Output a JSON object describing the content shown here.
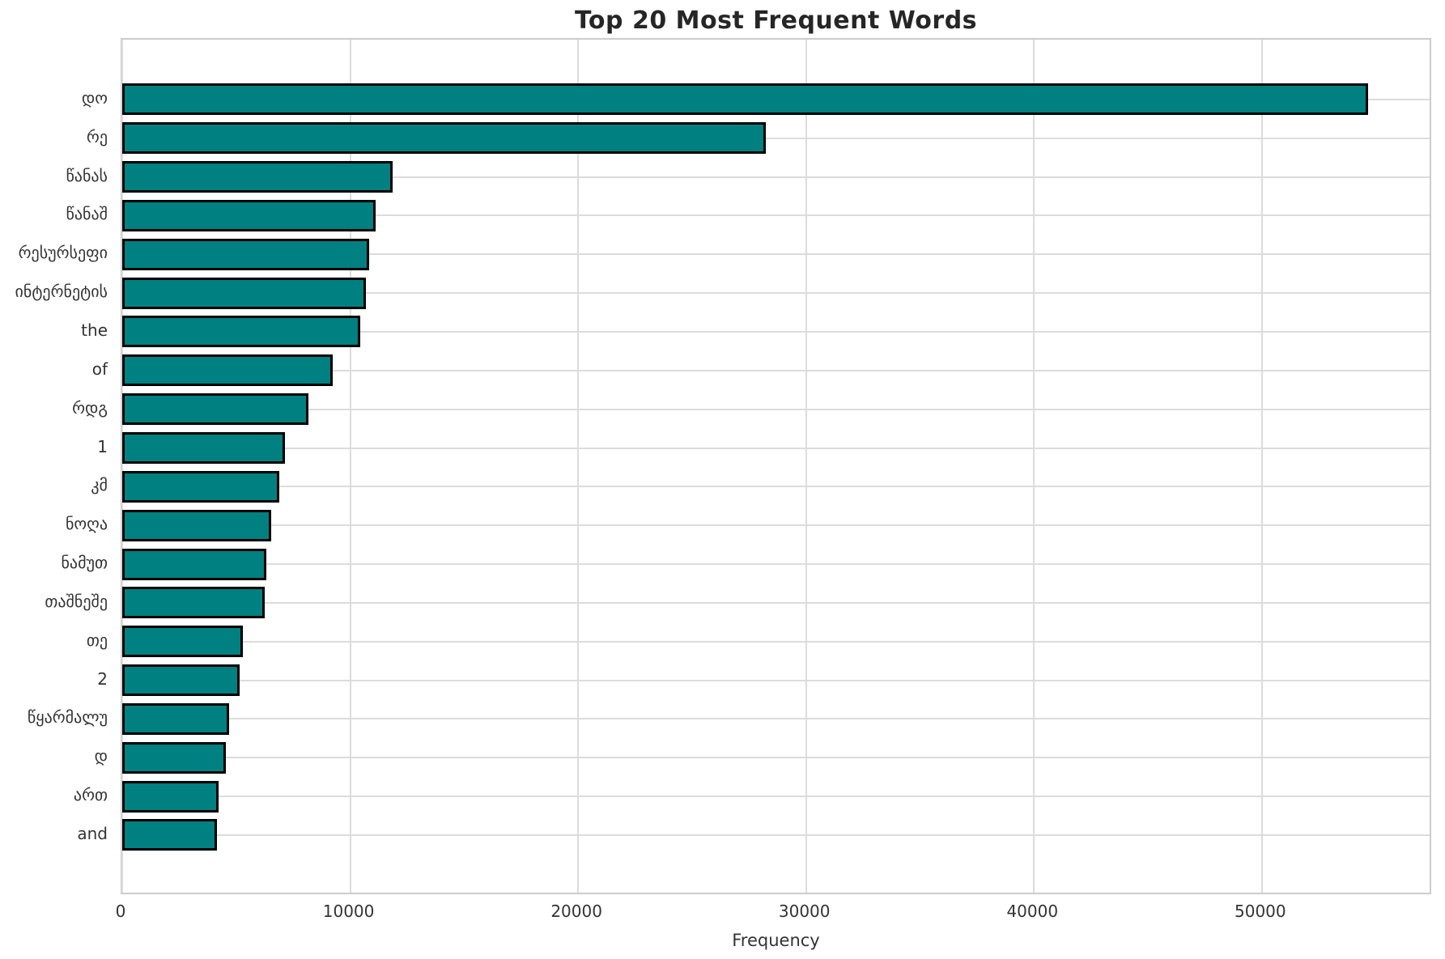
{
  "chart_data": {
    "type": "bar",
    "orientation": "horizontal",
    "title": "Top 20 Most Frequent Words",
    "xlabel": "Frequency",
    "ylabel": "",
    "categories": [
      "დო",
      "რე",
      "წანას",
      "წანაშ",
      "რესურსეფი",
      "ინტერნეტის",
      "the",
      "of",
      "რდგ",
      "1",
      "კმ",
      "ნოღა",
      "ნამუთ",
      "თაშნეშე",
      "თე",
      "2",
      "წყარმალუ",
      "დ",
      "ართ",
      "and"
    ],
    "values": [
      54800,
      28300,
      11900,
      11150,
      10850,
      10700,
      10450,
      9250,
      8200,
      7150,
      6900,
      6550,
      6350,
      6250,
      5300,
      5150,
      4700,
      4550,
      4250,
      4150
    ],
    "xlim": [
      0,
      57500
    ],
    "xticks": [
      0,
      10000,
      20000,
      30000,
      40000,
      50000
    ],
    "grid": true,
    "legend": null,
    "colors": {
      "bar_fill": "#008080",
      "bar_edge": "#000000",
      "grid": "#dcdcdc",
      "frame": "#cccccc",
      "tick_text": "#333333",
      "title_text": "#262626"
    }
  }
}
